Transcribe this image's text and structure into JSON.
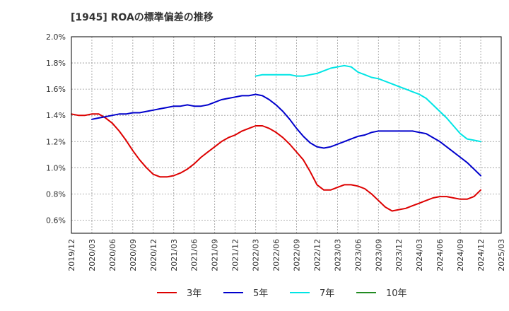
{
  "chart_data": {
    "type": "line",
    "title": "[1945]  ROAの標準偏差の推移",
    "xlabel": "",
    "ylabel": "",
    "ylim": [
      0.5,
      2.0
    ],
    "y_ticks": [
      "0.6%",
      "0.8%",
      "1.0%",
      "1.2%",
      "1.4%",
      "1.6%",
      "1.8%",
      "2.0%"
    ],
    "y_tick_values": [
      0.6,
      0.8,
      1.0,
      1.2,
      1.4,
      1.6,
      1.8,
      2.0
    ],
    "x_ticks": [
      "2019/12",
      "2020/03",
      "2020/06",
      "2020/09",
      "2020/12",
      "2021/03",
      "2021/06",
      "2021/09",
      "2021/12",
      "2022/03",
      "2022/06",
      "2022/09",
      "2022/12",
      "2023/03",
      "2023/06",
      "2023/09",
      "2023/12",
      "2024/03",
      "2024/06",
      "2024/09",
      "2024/12",
      "2025/03"
    ],
    "grid": true,
    "legend_position": "bottom",
    "series": [
      {
        "name": "3年",
        "color": "#dd0000",
        "points": [
          [
            "2019/12",
            1.41
          ],
          [
            "2020/01",
            1.4
          ],
          [
            "2020/02",
            1.4
          ],
          [
            "2020/03",
            1.41
          ],
          [
            "2020/04",
            1.41
          ],
          [
            "2020/05",
            1.38
          ],
          [
            "2020/06",
            1.34
          ],
          [
            "2020/07",
            1.28
          ],
          [
            "2020/08",
            1.21
          ],
          [
            "2020/09",
            1.13
          ],
          [
            "2020/10",
            1.06
          ],
          [
            "2020/11",
            1.0
          ],
          [
            "2020/12",
            0.95
          ],
          [
            "2021/01",
            0.93
          ],
          [
            "2021/02",
            0.93
          ],
          [
            "2021/03",
            0.94
          ],
          [
            "2021/04",
            0.96
          ],
          [
            "2021/05",
            0.99
          ],
          [
            "2021/06",
            1.03
          ],
          [
            "2021/07",
            1.08
          ],
          [
            "2021/08",
            1.12
          ],
          [
            "2021/09",
            1.16
          ],
          [
            "2021/10",
            1.2
          ],
          [
            "2021/11",
            1.23
          ],
          [
            "2021/12",
            1.25
          ],
          [
            "2022/01",
            1.28
          ],
          [
            "2022/02",
            1.3
          ],
          [
            "2022/03",
            1.32
          ],
          [
            "2022/04",
            1.32
          ],
          [
            "2022/05",
            1.3
          ],
          [
            "2022/06",
            1.27
          ],
          [
            "2022/07",
            1.23
          ],
          [
            "2022/08",
            1.18
          ],
          [
            "2022/09",
            1.12
          ],
          [
            "2022/10",
            1.06
          ],
          [
            "2022/11",
            0.97
          ],
          [
            "2022/12",
            0.87
          ],
          [
            "2023/01",
            0.83
          ],
          [
            "2023/02",
            0.83
          ],
          [
            "2023/03",
            0.85
          ],
          [
            "2023/04",
            0.87
          ],
          [
            "2023/05",
            0.87
          ],
          [
            "2023/06",
            0.86
          ],
          [
            "2023/07",
            0.84
          ],
          [
            "2023/08",
            0.8
          ],
          [
            "2023/09",
            0.75
          ],
          [
            "2023/10",
            0.7
          ],
          [
            "2023/11",
            0.67
          ],
          [
            "2023/12",
            0.68
          ],
          [
            "2024/01",
            0.69
          ],
          [
            "2024/02",
            0.71
          ],
          [
            "2024/03",
            0.73
          ],
          [
            "2024/04",
            0.75
          ],
          [
            "2024/05",
            0.77
          ],
          [
            "2024/06",
            0.78
          ],
          [
            "2024/07",
            0.78
          ],
          [
            "2024/08",
            0.77
          ],
          [
            "2024/09",
            0.76
          ],
          [
            "2024/10",
            0.76
          ],
          [
            "2024/11",
            0.78
          ],
          [
            "2024/12",
            0.83
          ]
        ]
      },
      {
        "name": "5年",
        "color": "#0000cc",
        "points": [
          [
            "2020/03",
            1.37
          ],
          [
            "2020/04",
            1.38
          ],
          [
            "2020/05",
            1.39
          ],
          [
            "2020/06",
            1.4
          ],
          [
            "2020/07",
            1.41
          ],
          [
            "2020/08",
            1.41
          ],
          [
            "2020/09",
            1.42
          ],
          [
            "2020/10",
            1.42
          ],
          [
            "2020/11",
            1.43
          ],
          [
            "2020/12",
            1.44
          ],
          [
            "2021/01",
            1.45
          ],
          [
            "2021/02",
            1.46
          ],
          [
            "2021/03",
            1.47
          ],
          [
            "2021/04",
            1.47
          ],
          [
            "2021/05",
            1.48
          ],
          [
            "2021/06",
            1.47
          ],
          [
            "2021/07",
            1.47
          ],
          [
            "2021/08",
            1.48
          ],
          [
            "2021/09",
            1.5
          ],
          [
            "2021/10",
            1.52
          ],
          [
            "2021/11",
            1.53
          ],
          [
            "2021/12",
            1.54
          ],
          [
            "2022/01",
            1.55
          ],
          [
            "2022/02",
            1.55
          ],
          [
            "2022/03",
            1.56
          ],
          [
            "2022/04",
            1.55
          ],
          [
            "2022/05",
            1.52
          ],
          [
            "2022/06",
            1.48
          ],
          [
            "2022/07",
            1.43
          ],
          [
            "2022/08",
            1.37
          ],
          [
            "2022/09",
            1.3
          ],
          [
            "2022/10",
            1.24
          ],
          [
            "2022/11",
            1.19
          ],
          [
            "2022/12",
            1.16
          ],
          [
            "2023/01",
            1.15
          ],
          [
            "2023/02",
            1.16
          ],
          [
            "2023/03",
            1.18
          ],
          [
            "2023/04",
            1.2
          ],
          [
            "2023/05",
            1.22
          ],
          [
            "2023/06",
            1.24
          ],
          [
            "2023/07",
            1.25
          ],
          [
            "2023/08",
            1.27
          ],
          [
            "2023/09",
            1.28
          ],
          [
            "2023/10",
            1.28
          ],
          [
            "2023/11",
            1.28
          ],
          [
            "2023/12",
            1.28
          ],
          [
            "2024/01",
            1.28
          ],
          [
            "2024/02",
            1.28
          ],
          [
            "2024/03",
            1.27
          ],
          [
            "2024/04",
            1.26
          ],
          [
            "2024/05",
            1.23
          ],
          [
            "2024/06",
            1.2
          ],
          [
            "2024/07",
            1.16
          ],
          [
            "2024/08",
            1.12
          ],
          [
            "2024/09",
            1.08
          ],
          [
            "2024/10",
            1.04
          ],
          [
            "2024/11",
            0.99
          ],
          [
            "2024/12",
            0.94
          ]
        ]
      },
      {
        "name": "7年",
        "color": "#00e5e5",
        "points": [
          [
            "2022/03",
            1.7
          ],
          [
            "2022/04",
            1.71
          ],
          [
            "2022/05",
            1.71
          ],
          [
            "2022/06",
            1.71
          ],
          [
            "2022/07",
            1.71
          ],
          [
            "2022/08",
            1.71
          ],
          [
            "2022/09",
            1.7
          ],
          [
            "2022/10",
            1.7
          ],
          [
            "2022/11",
            1.71
          ],
          [
            "2022/12",
            1.72
          ],
          [
            "2023/01",
            1.74
          ],
          [
            "2023/02",
            1.76
          ],
          [
            "2023/03",
            1.77
          ],
          [
            "2023/04",
            1.78
          ],
          [
            "2023/05",
            1.77
          ],
          [
            "2023/06",
            1.73
          ],
          [
            "2023/07",
            1.71
          ],
          [
            "2023/08",
            1.69
          ],
          [
            "2023/09",
            1.68
          ],
          [
            "2023/10",
            1.66
          ],
          [
            "2023/11",
            1.64
          ],
          [
            "2023/12",
            1.62
          ],
          [
            "2024/01",
            1.6
          ],
          [
            "2024/02",
            1.58
          ],
          [
            "2024/03",
            1.56
          ],
          [
            "2024/04",
            1.53
          ],
          [
            "2024/05",
            1.48
          ],
          [
            "2024/06",
            1.43
          ],
          [
            "2024/07",
            1.38
          ],
          [
            "2024/08",
            1.32
          ],
          [
            "2024/09",
            1.26
          ],
          [
            "2024/10",
            1.22
          ],
          [
            "2024/11",
            1.21
          ],
          [
            "2024/12",
            1.2
          ]
        ]
      },
      {
        "name": "10年",
        "color": "#228b22",
        "points": []
      }
    ]
  }
}
